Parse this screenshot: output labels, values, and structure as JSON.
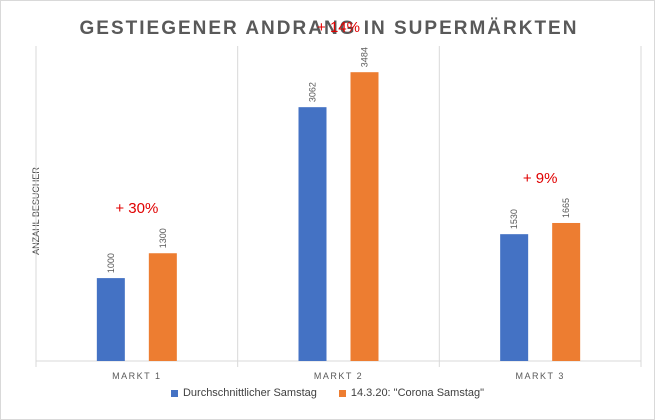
{
  "chart_data": {
    "type": "bar",
    "title": "GESTIEGENER ANDRANG IN SUPERMÄRKTEN",
    "xlabel": "",
    "ylabel": "ANZAHL BESUCHER",
    "categories": [
      "MARKT 1",
      "MARKT 2",
      "MARKT 3"
    ],
    "series": [
      {
        "name": "Durchschnittlicher Samstag",
        "values": [
          1000,
          3062,
          1530
        ],
        "color": "#4472c4"
      },
      {
        "name": "14.3.20: \"Corona Samstag\"",
        "values": [
          1300,
          3484,
          1665
        ],
        "color": "#ed7d31"
      }
    ],
    "annotations": [
      "+ 30%",
      "+ 14%",
      "+ 9%"
    ],
    "annotation_color": "#e00000",
    "ylim": [
      0,
      3800
    ],
    "grid": "vertical category separators",
    "legend_position": "bottom"
  }
}
